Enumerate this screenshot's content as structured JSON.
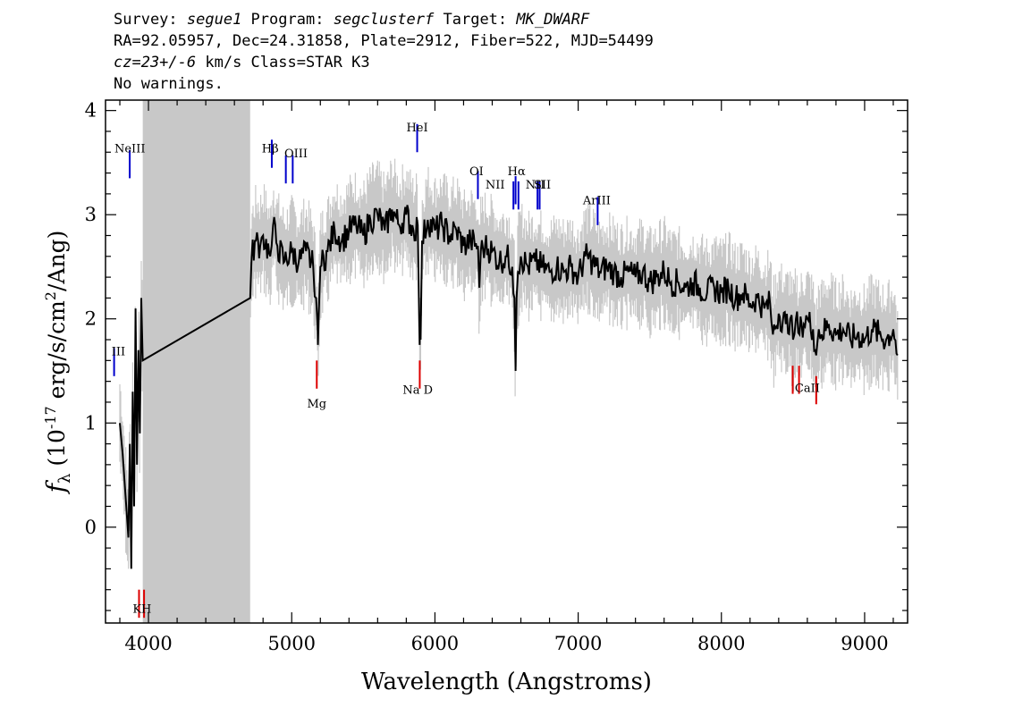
{
  "header": {
    "survey_label": "Survey: ",
    "survey": "segue1",
    "program_label": " Program: ",
    "program": "segclusterf",
    "target_label": " Target: ",
    "target": "MK_DWARF",
    "coords": "RA=92.05957, Dec=24.31858, Plate=2912, Fiber=522, MJD=54499",
    "cz": "cz=23+/-6",
    "cz_rest": " km/s Class=STAR K3",
    "warnings": "No warnings."
  },
  "colors": {
    "spectrum": "#000000",
    "error_band": "#c8c8c8",
    "masked_region": "#c8c8c8",
    "emission_marker": "#0000cc",
    "absorption_marker": "#dd0000"
  },
  "chart_data": {
    "type": "line",
    "xlabel": "Wavelength (Angstroms)",
    "ylabel": "f_λ (10^-17 erg/s/cm^2/Ang)",
    "xlim": [
      3700,
      9300
    ],
    "ylim": [
      -0.92,
      4.1
    ],
    "xticks": [
      "4000",
      "5000",
      "6000",
      "7000",
      "8000",
      "9000"
    ],
    "yticks": [
      "0",
      "1",
      "2",
      "3",
      "4"
    ],
    "grid": false,
    "masked_region": [
      3960,
      4710
    ],
    "series": [
      {
        "x": [
          3800,
          3820,
          3840,
          3860,
          3870,
          3880,
          3890,
          3900,
          3910,
          3920,
          3930,
          3940,
          3950,
          3960,
          4710,
          4720,
          4750,
          4780,
          4800,
          4850,
          4860,
          4870,
          4900,
          4950,
          5000,
          5050,
          5100,
          5150,
          5170,
          5180,
          5183,
          5190,
          5200,
          5250,
          5300,
          5350,
          5400,
          5450,
          5500,
          5550,
          5600,
          5650,
          5700,
          5750,
          5800,
          5850,
          5880,
          5890,
          5893,
          5896,
          5900,
          5910,
          5950,
          6000,
          6050,
          6100,
          6150,
          6200,
          6250,
          6300,
          6310,
          6320,
          6350,
          6400,
          6450,
          6500,
          6540,
          6555,
          6563,
          6570,
          6580,
          6600,
          6650,
          6700,
          6750,
          6800,
          6850,
          6900,
          6950,
          7000,
          7050,
          7100,
          7150,
          7200,
          7250,
          7300,
          7350,
          7400,
          7450,
          7500,
          7550,
          7600,
          7650,
          7700,
          7750,
          7800,
          7850,
          7900,
          7950,
          8000,
          8050,
          8100,
          8150,
          8200,
          8250,
          8300,
          8340,
          8360,
          8400,
          8450,
          8480,
          8500,
          8520,
          8545,
          8560,
          8600,
          8640,
          8662,
          8680,
          8700,
          8750,
          8800,
          8850,
          8900,
          8950,
          9000,
          9050,
          9100,
          9150,
          9200,
          9230
        ],
        "y": [
          1.0,
          0.7,
          0.3,
          -0.1,
          0.8,
          -0.4,
          1.3,
          0.2,
          2.1,
          0.6,
          1.7,
          0.9,
          2.2,
          1.6,
          2.2,
          2.6,
          2.75,
          2.7,
          2.8,
          2.6,
          2.7,
          2.9,
          2.7,
          2.55,
          2.65,
          2.55,
          2.65,
          2.5,
          2.2,
          1.95,
          1.75,
          2.1,
          2.5,
          2.65,
          2.85,
          2.75,
          2.85,
          2.9,
          2.8,
          2.95,
          3.0,
          2.85,
          3.05,
          2.9,
          3.0,
          2.85,
          2.9,
          2.0,
          1.75,
          2.0,
          1.8,
          2.75,
          2.95,
          2.85,
          2.9,
          2.8,
          2.85,
          2.7,
          2.75,
          2.7,
          2.3,
          2.65,
          2.7,
          2.65,
          2.55,
          2.6,
          2.5,
          2.2,
          1.5,
          2.2,
          2.45,
          2.6,
          2.5,
          2.55,
          2.5,
          2.45,
          2.5,
          2.45,
          2.5,
          2.4,
          2.6,
          2.55,
          2.45,
          2.5,
          2.45,
          2.4,
          2.45,
          2.4,
          2.45,
          2.35,
          2.4,
          2.45,
          2.35,
          2.35,
          2.3,
          2.35,
          2.3,
          2.25,
          2.3,
          2.25,
          2.3,
          2.2,
          2.25,
          2.15,
          2.2,
          2.1,
          2.15,
          1.85,
          2.05,
          1.95,
          2.0,
          1.8,
          2.0,
          1.85,
          1.95,
          2.0,
          1.9,
          1.65,
          1.9,
          1.85,
          1.95,
          1.85,
          1.9,
          1.8,
          1.85,
          1.8,
          1.9,
          1.85,
          1.8,
          1.9,
          1.65
        ]
      }
    ],
    "emission_lines": [
      {
        "label": "NeIII",
        "x": 3869,
        "y": 3.35
      },
      {
        "label": "III",
        "x": 3760,
        "y": 1.45
      },
      {
        "label": "Hβ",
        "x": 4861,
        "y": 3.45
      },
      {
        "label": "OIII",
        "x": 4959,
        "y": 3.3
      },
      {
        "label": "OIII",
        "x": 5007,
        "y": 3.3
      },
      {
        "label": "HeI",
        "x": 5876,
        "y": 3.6
      },
      {
        "label": "OI",
        "x": 6300,
        "y": 3.15
      },
      {
        "label": "NII",
        "x": 6548,
        "y": 3.05
      },
      {
        "label": "Hα",
        "x": 6563,
        "y": 3.1
      },
      {
        "label": "NII",
        "x": 6583,
        "y": 3.05
      },
      {
        "label": "SII",
        "x": 6716,
        "y": 3.05
      },
      {
        "label": "SII",
        "x": 6731,
        "y": 3.05
      },
      {
        "label": "ArIII",
        "x": 7136,
        "y": 2.9
      }
    ],
    "absorption_lines": [
      {
        "label": "Mg",
        "x": 5175,
        "y": 1.6
      },
      {
        "label": "Na D",
        "x": 5894,
        "y": 1.6
      },
      {
        "label": "CaII",
        "x": 8498,
        "y": 1.55
      },
      {
        "label": "CaII",
        "x": 8542,
        "y": 1.55
      },
      {
        "label": "CaII",
        "x": 8662,
        "y": 1.45
      },
      {
        "label": "K",
        "x": 3934,
        "y": -0.6
      },
      {
        "label": "H",
        "x": 3969,
        "y": -0.6
      }
    ],
    "line_labels": [
      {
        "text": "NeIII",
        "x": 3870,
        "y": 3.6
      },
      {
        "text": "III",
        "x": 3790,
        "y": 1.65
      },
      {
        "text": "Hβ",
        "x": 4850,
        "y": 3.6
      },
      {
        "text": "OIII",
        "x": 5030,
        "y": 3.55
      },
      {
        "text": "HeI",
        "x": 5876,
        "y": 3.8
      },
      {
        "text": "OI",
        "x": 6290,
        "y": 3.38
      },
      {
        "text": "NII",
        "x": 6420,
        "y": 3.25
      },
      {
        "text": "Hα",
        "x": 6570,
        "y": 3.38
      },
      {
        "text": "NII",
        "x": 6700,
        "y": 3.25
      },
      {
        "text": "SII",
        "x": 6750,
        "y": 3.25
      },
      {
        "text": "ArIII",
        "x": 7130,
        "y": 3.1
      },
      {
        "text": "Mg",
        "x": 5175,
        "y": 1.15
      },
      {
        "text": "Na  D",
        "x": 5880,
        "y": 1.28
      },
      {
        "text": "CaII",
        "x": 8600,
        "y": 1.3
      },
      {
        "text": "K",
        "x": 3920,
        "y": -0.82
      },
      {
        "text": "H",
        "x": 3985,
        "y": -0.82
      }
    ]
  }
}
